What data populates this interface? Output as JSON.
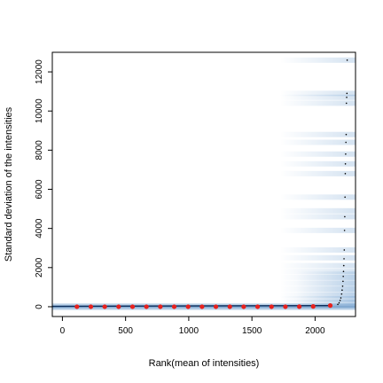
{
  "chart_data": {
    "type": "scatter",
    "xlabel": "Rank(mean of intensities)",
    "ylabel": "Standard deviation of the intensities",
    "xlim": [
      -80,
      2320
    ],
    "ylim": [
      -500,
      13000
    ],
    "x_ticks": [
      0,
      500,
      1000,
      1500,
      2000
    ],
    "x_tick_labels": [
      "0",
      "500",
      "1000",
      "1500",
      "2000"
    ],
    "y_ticks": [
      0,
      2000,
      4000,
      6000,
      8000,
      10000,
      12000
    ],
    "y_tick_labels": [
      "0",
      "2000",
      "4000",
      "6000",
      "8000",
      "10000",
      "12000"
    ],
    "grid": false,
    "colors": {
      "density": "#3b7dbf",
      "running_median": "#e8211e",
      "outliers": "#000000",
      "trend_line": "#0b2d5a"
    },
    "series": [
      {
        "type": "red-points",
        "x": [
          115,
          225,
          335,
          445,
          555,
          665,
          775,
          885,
          995,
          1105,
          1215,
          1325,
          1435,
          1545,
          1655,
          1765,
          1875,
          1985,
          2120
        ],
        "y": [
          0,
          0,
          0,
          0,
          0,
          0,
          0,
          0,
          0,
          0,
          0,
          0,
          0,
          0,
          0,
          0,
          5,
          15,
          60
        ]
      }
    ],
    "outlier_points": [
      {
        "x": 2180,
        "y": 120
      },
      {
        "x": 2190,
        "y": 200
      },
      {
        "x": 2198,
        "y": 320
      },
      {
        "x": 2204,
        "y": 450
      },
      {
        "x": 2210,
        "y": 650
      },
      {
        "x": 2214,
        "y": 850
      },
      {
        "x": 2218,
        "y": 1050
      },
      {
        "x": 2221,
        "y": 1300
      },
      {
        "x": 2223,
        "y": 1550
      },
      {
        "x": 2225,
        "y": 1800
      },
      {
        "x": 2227,
        "y": 2100
      },
      {
        "x": 2229,
        "y": 2450
      },
      {
        "x": 2231,
        "y": 2900
      },
      {
        "x": 2233,
        "y": 3900
      },
      {
        "x": 2235,
        "y": 4600
      },
      {
        "x": 2237,
        "y": 5600
      },
      {
        "x": 2239,
        "y": 6800
      },
      {
        "x": 2240,
        "y": 7300
      },
      {
        "x": 2242,
        "y": 7800
      },
      {
        "x": 2244,
        "y": 8400
      },
      {
        "x": 2246,
        "y": 8800
      },
      {
        "x": 2248,
        "y": 10400
      },
      {
        "x": 2250,
        "y": 10700
      },
      {
        "x": 2252,
        "y": 10900
      },
      {
        "x": 2254,
        "y": 12600
      }
    ],
    "density_bands": [
      12600,
      10900,
      10700,
      10400,
      8800,
      8400,
      7800,
      7300,
      6800,
      5600,
      4900,
      4600,
      3900,
      2900,
      2500,
      2100,
      1800,
      1500,
      1200,
      900,
      600,
      400,
      200
    ]
  }
}
